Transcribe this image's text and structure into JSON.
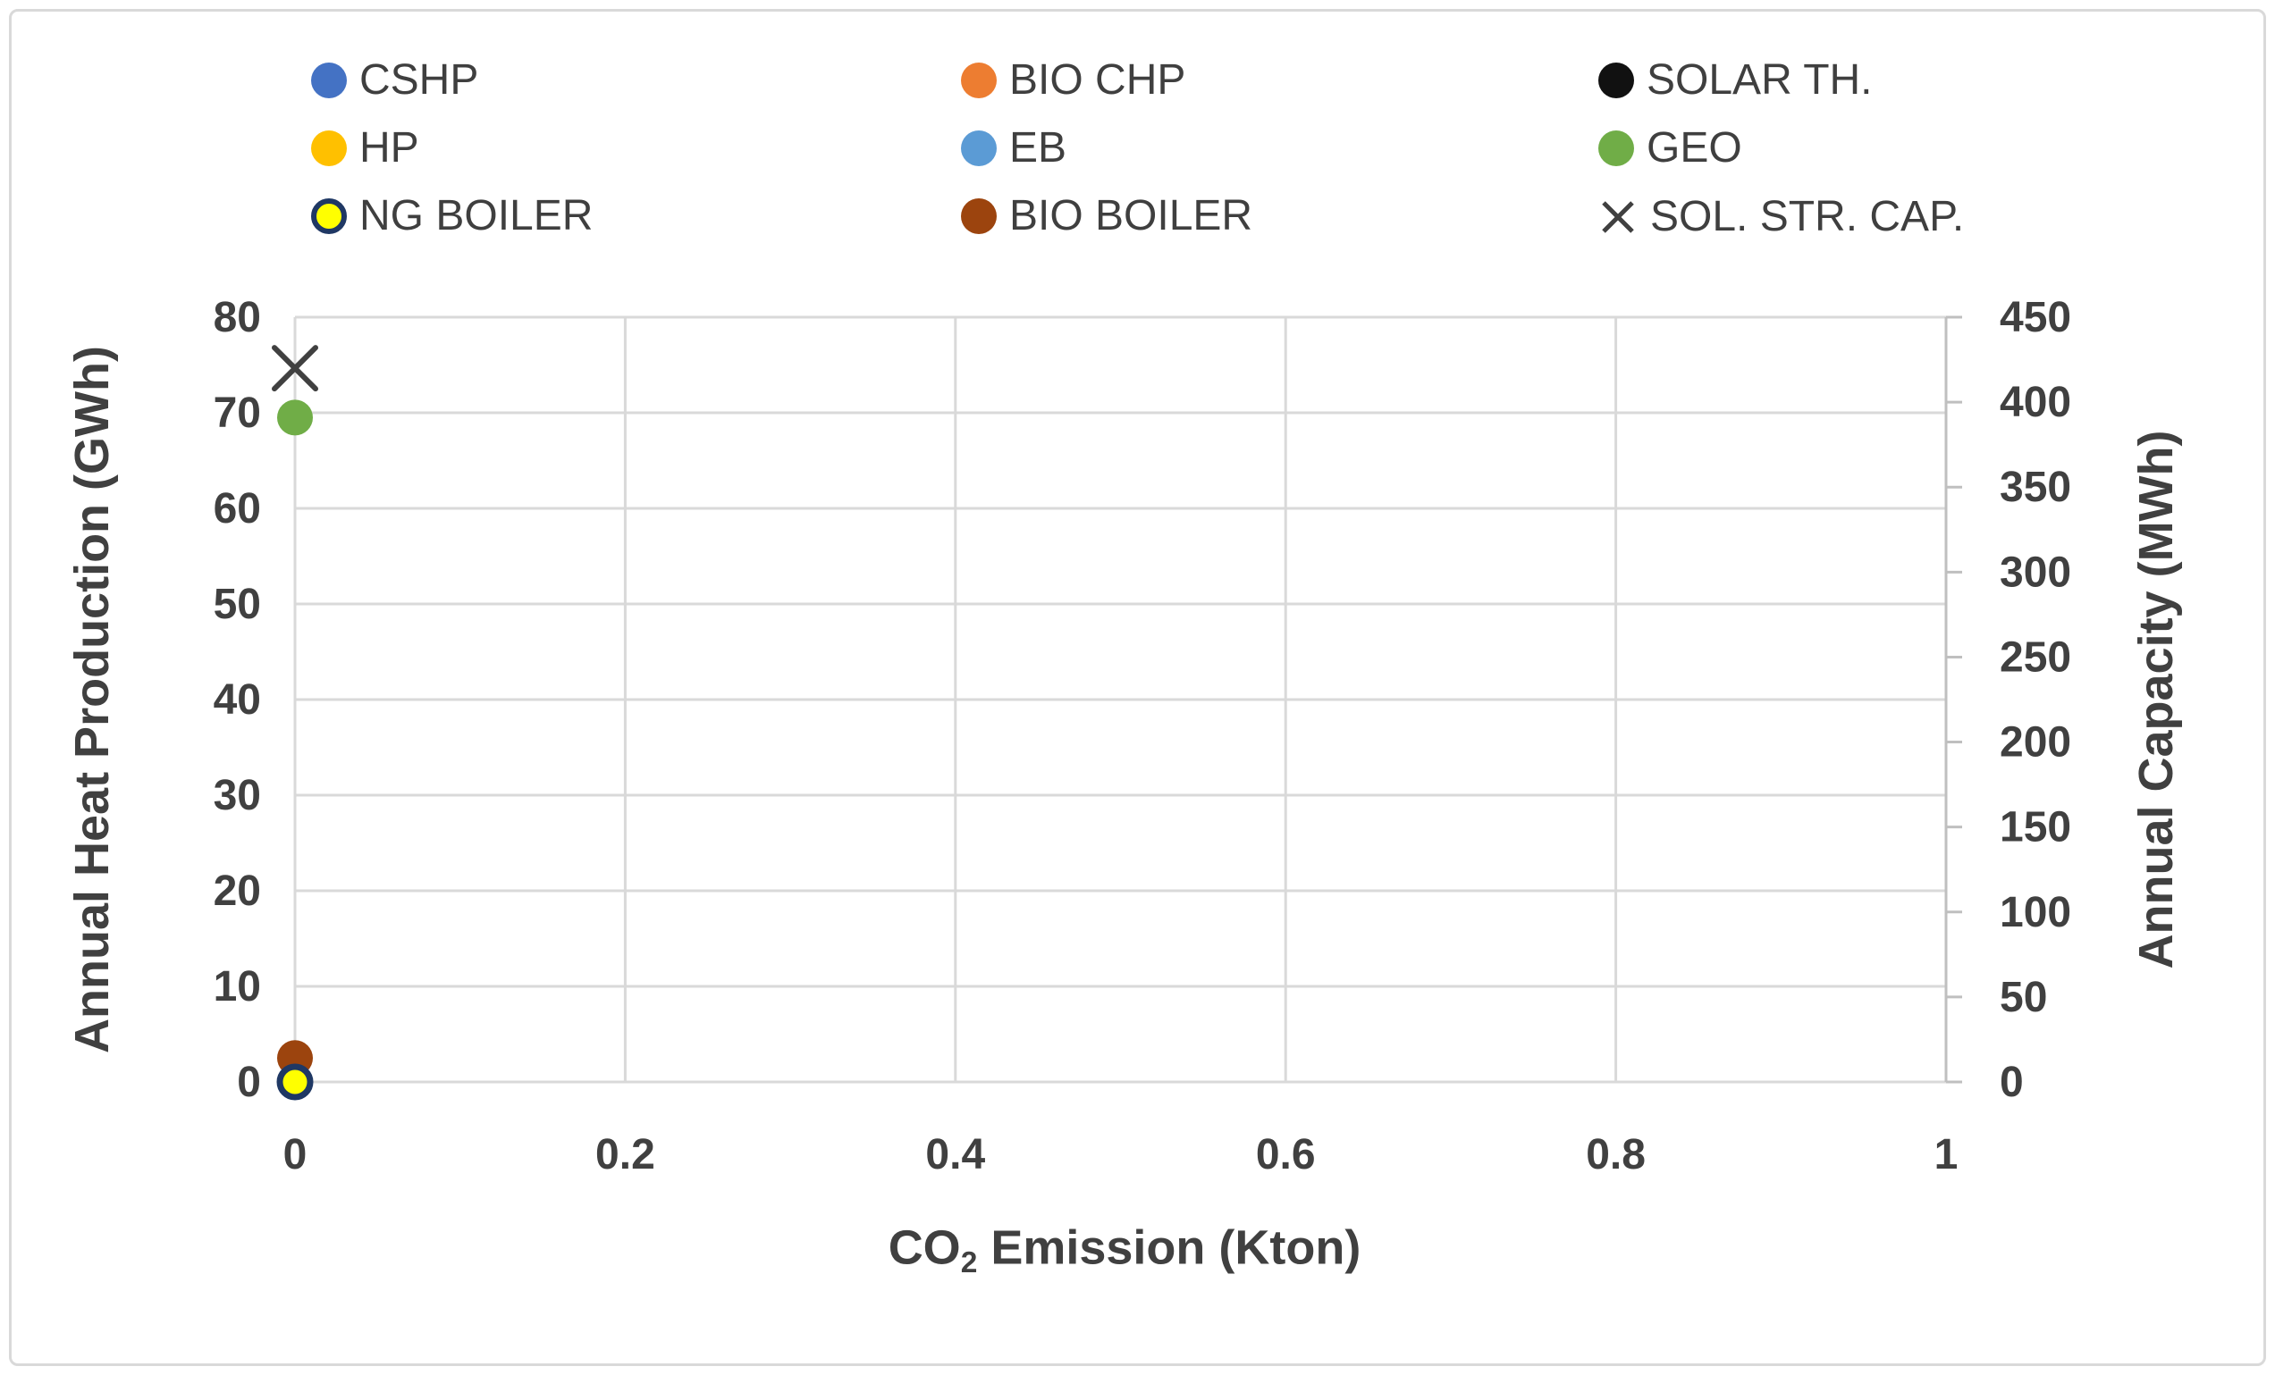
{
  "chart_data": {
    "type": "scatter",
    "title": "",
    "grid": true,
    "legend_position": "top",
    "x_axis": {
      "title_prefix": "CO",
      "title_sub": "2",
      "title_suffix": " Emission (Kton)",
      "title_plain": "CO2 Emission (Kton)",
      "min": 0,
      "max": 1,
      "tick_values": [
        0,
        0.2,
        0.4,
        0.6,
        0.8,
        1
      ],
      "tick_labels": [
        "0",
        "0.2",
        "0.4",
        "0.6",
        "0.8",
        "1"
      ]
    },
    "y_left_axis": {
      "title": "Annual Heat Production (GWh)",
      "min": 0,
      "max": 80,
      "tick_values": [
        0,
        10,
        20,
        30,
        40,
        50,
        60,
        70,
        80
      ],
      "tick_labels": [
        "0",
        "10",
        "20",
        "30",
        "40",
        "50",
        "60",
        "70",
        "80"
      ]
    },
    "y_right_axis": {
      "title": "Annual Capacity (MWh)",
      "min": 0,
      "max": 450,
      "tick_values": [
        0,
        50,
        100,
        150,
        200,
        250,
        300,
        350,
        400,
        450
      ],
      "tick_labels": [
        "0",
        "50",
        "100",
        "150",
        "200",
        "250",
        "300",
        "350",
        "400",
        "450"
      ]
    },
    "series": [
      {
        "name": "CSHP",
        "marker": "circle",
        "color": "#4472C4",
        "border": null,
        "axis": "left",
        "points": []
      },
      {
        "name": "BIO CHP",
        "marker": "circle",
        "color": "#ED7D31",
        "border": null,
        "axis": "left",
        "points": []
      },
      {
        "name": "SOLAR TH.",
        "marker": "circle",
        "color": "#111111",
        "border": null,
        "axis": "left",
        "points": []
      },
      {
        "name": "HP",
        "marker": "circle",
        "color": "#FFC000",
        "border": null,
        "axis": "left",
        "points": []
      },
      {
        "name": "EB",
        "marker": "circle",
        "color": "#5B9BD5",
        "border": null,
        "axis": "left",
        "points": []
      },
      {
        "name": "GEO",
        "marker": "circle",
        "color": "#70AD47",
        "border": null,
        "axis": "left",
        "points": [
          {
            "x": 0,
            "y": 69.5
          }
        ]
      },
      {
        "name": "BIO BOILER",
        "marker": "circle",
        "color": "#9C440E",
        "border": null,
        "axis": "left",
        "points": [
          {
            "x": 0,
            "y": 2.5
          }
        ]
      },
      {
        "name": "NG BOILER",
        "marker": "circle",
        "color": "#FFFF00",
        "border": "#1F3864",
        "axis": "left",
        "points": [
          {
            "x": 0,
            "y": 0
          }
        ]
      },
      {
        "name": "SOL. STR. CAP.",
        "marker": "x",
        "color": "#404040",
        "border": null,
        "axis": "right",
        "points": [
          {
            "x": 0,
            "y": 420
          }
        ]
      }
    ],
    "legend_order": [
      "CSHP",
      "BIO CHP",
      "SOLAR TH.",
      "HP",
      "EB",
      "GEO",
      "NG BOILER",
      "BIO BOILER",
      "SOL. STR. CAP."
    ],
    "colors": {
      "gridline": "#D9D9D9",
      "axis_line": "#BFBFBF",
      "tick_text": "#404040",
      "axis_title_text": "#404040",
      "legend_text": "#3F3F3F",
      "frame_border": "#D9D9D9"
    }
  }
}
